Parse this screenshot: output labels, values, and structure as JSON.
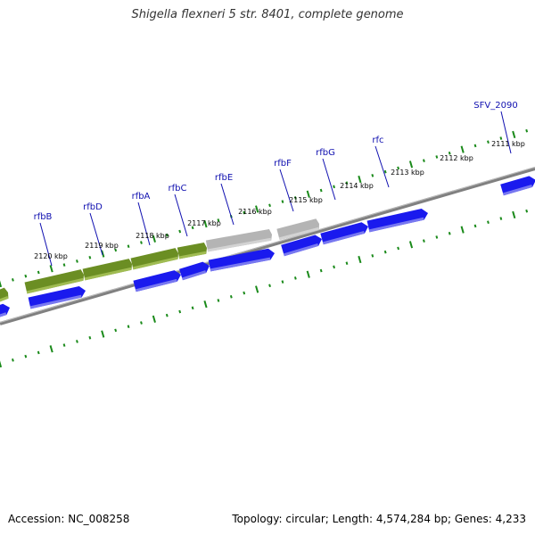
{
  "title": "Shigella flexneri 5 str. 8401, complete genome",
  "footer": {
    "accession": "Accession: NC_008258",
    "summary": "Topology: circular; Length: 4,574,284 bp; Genes: 4,233"
  },
  "colors": {
    "cds_plus": "#1a1aee",
    "cds_other": "#6b8e23",
    "cds_grey": "#b4b4b4",
    "backbone": "#808080",
    "tick": "#1a8a1a",
    "gene_label": "#1010b0",
    "tick_label": "#000000"
  },
  "gene_labels": [
    "SFV_2090",
    "rfc",
    "rfbG",
    "rfbF",
    "rfbE",
    "rfbC",
    "rfbA",
    "rfbD",
    "rfbB"
  ],
  "kbp_labels": [
    "2111 kbp",
    "2112 kbp",
    "2113 kbp",
    "2114 kbp",
    "2115 kbp",
    "2116 kbp",
    "2117 kbp",
    "2118 kbp",
    "2119 kbp",
    "2120 kbp"
  ],
  "features": [
    {
      "type": "cds_plus",
      "strand": "forward",
      "label": "SFV_2090"
    },
    {
      "type": "cds_plus",
      "strand": "forward",
      "label": "rfc"
    },
    {
      "type": "cds_plus",
      "strand": "forward",
      "label": "rfbG"
    },
    {
      "type": "cds_plus",
      "strand": "forward",
      "label": "rfbF"
    },
    {
      "type": "cds_plus",
      "strand": "forward",
      "label": "rfbE"
    },
    {
      "type": "cds_plus",
      "strand": "forward",
      "label": "rfbC"
    },
    {
      "type": "cds_plus",
      "strand": "forward",
      "label": "rfbA"
    },
    {
      "type": "cds_plus",
      "strand": "forward",
      "label": "rfbD"
    },
    {
      "type": "cds_plus",
      "strand": "forward",
      "label": "rfbB"
    },
    {
      "type": "cds_grey",
      "strand": "forward",
      "label": ""
    },
    {
      "type": "cds_other",
      "strand": "forward",
      "label": ""
    }
  ]
}
